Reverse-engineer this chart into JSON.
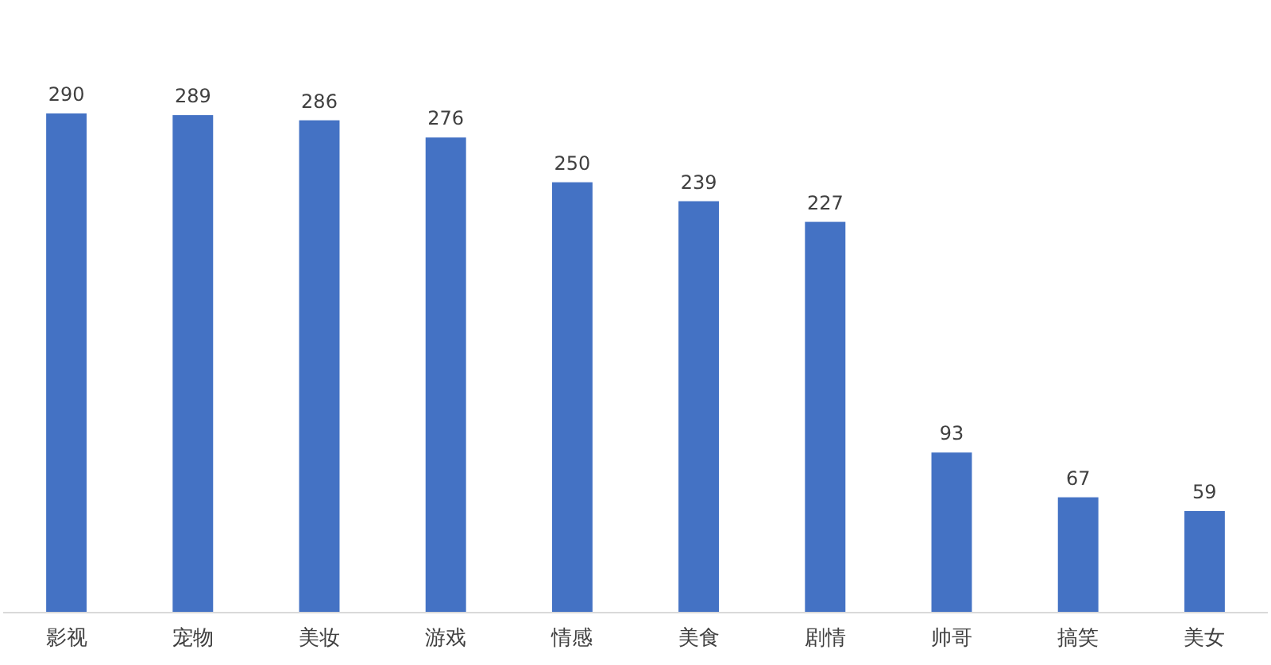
{
  "chart_data": {
    "type": "bar",
    "categories": [
      "影视",
      "宠物",
      "美妆",
      "游戏",
      "情感",
      "美食",
      "剧情",
      "帅哥",
      "搞笑",
      "美女"
    ],
    "values": [
      290,
      289,
      286,
      276,
      250,
      239,
      227,
      93,
      67,
      59
    ],
    "color": "#4472c4",
    "data_labels": true
  }
}
